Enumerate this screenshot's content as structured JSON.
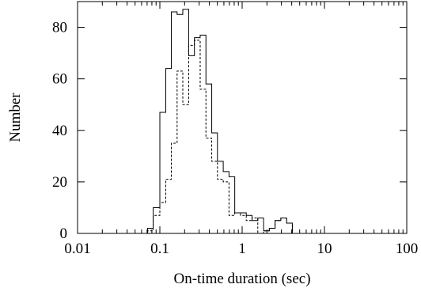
{
  "chart_data": {
    "type": "histogram",
    "xlabel": "On-time duration (sec)",
    "ylabel": "Number",
    "xscale": "log",
    "xlim": [
      0.01,
      100
    ],
    "ylim": [
      0,
      90
    ],
    "x_ticks": [
      0.01,
      0.1,
      1,
      10,
      100
    ],
    "x_tick_labels": [
      "0.01",
      "0.1",
      "1",
      "10",
      "100"
    ],
    "y_ticks": [
      0,
      20,
      40,
      60,
      80
    ],
    "y_tick_labels": [
      "0",
      "20",
      "40",
      "60",
      "80"
    ],
    "grid": false,
    "series": [
      {
        "line": "solid",
        "bin_edges": [
          0.071,
          0.083,
          0.1,
          0.118,
          0.138,
          0.162,
          0.19,
          0.224,
          0.263,
          0.309,
          0.363,
          0.427,
          0.501,
          0.589,
          0.692,
          0.813,
          0.955,
          1.122,
          1.318,
          1.549,
          1.82,
          2.138,
          2.512,
          2.951,
          3.467,
          4.074,
          4.786,
          5.623,
          6.607,
          7.762,
          9.12
        ],
        "values": [
          2,
          10,
          47,
          64,
          86,
          85,
          87,
          69,
          76,
          77,
          58,
          39,
          28,
          24,
          22,
          8,
          8,
          7,
          5,
          6,
          1,
          2,
          5,
          6,
          4,
          0,
          0,
          0,
          0,
          0
        ]
      },
      {
        "line": "dashed",
        "bin_edges": [
          0.071,
          0.083,
          0.1,
          0.118,
          0.138,
          0.162,
          0.19,
          0.224,
          0.263,
          0.309,
          0.363,
          0.427,
          0.501,
          0.589,
          0.692,
          0.813,
          0.955,
          1.122,
          1.318,
          1.549,
          1.82,
          2.138,
          2.512,
          2.951,
          3.467,
          4.074,
          4.786,
          5.623,
          6.607,
          7.762,
          9.12
        ],
        "values": [
          1,
          7,
          12,
          21,
          35,
          63,
          50,
          73,
          75,
          56,
          37,
          28,
          21,
          20,
          7,
          8,
          7,
          5,
          6,
          0,
          1,
          2,
          5,
          6,
          4,
          0,
          0,
          0,
          0,
          0
        ]
      }
    ]
  }
}
